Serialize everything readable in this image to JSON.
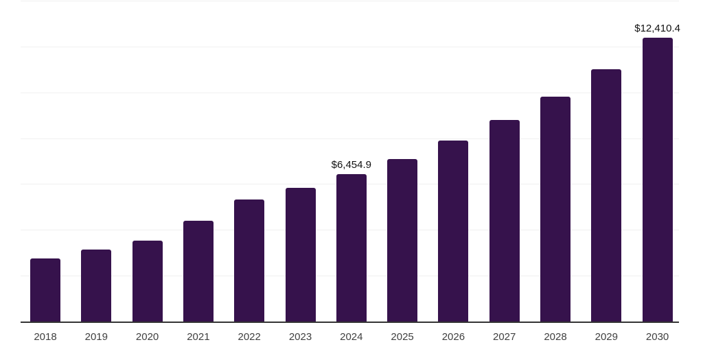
{
  "chart_data": {
    "type": "bar",
    "title": "",
    "xlabel": "",
    "ylabel": "",
    "categories": [
      "2018",
      "2019",
      "2020",
      "2021",
      "2022",
      "2023",
      "2024",
      "2025",
      "2026",
      "2027",
      "2028",
      "2029",
      "2030"
    ],
    "values": [
      2769.6,
      3156.9,
      3573.9,
      4437.5,
      5345.8,
      5852.1,
      6454.9,
      7132.6,
      7936.7,
      8830.1,
      9842.6,
      11042.5,
      12410.4
    ],
    "data_labels": [
      {
        "category": "2024",
        "text": "$6,454.9"
      },
      {
        "category": "2030",
        "text": "$12,410.4"
      }
    ],
    "ylim": [
      0,
      14000
    ],
    "grid_step": 2000,
    "grid": true,
    "y_tick_labels_visible": false,
    "legend": "none",
    "colors": {
      "bar": "#36124c",
      "axis_line": "#333333",
      "gridline": "#f0f0f0",
      "tick_label": "#404040",
      "value_label": "#111111"
    }
  }
}
